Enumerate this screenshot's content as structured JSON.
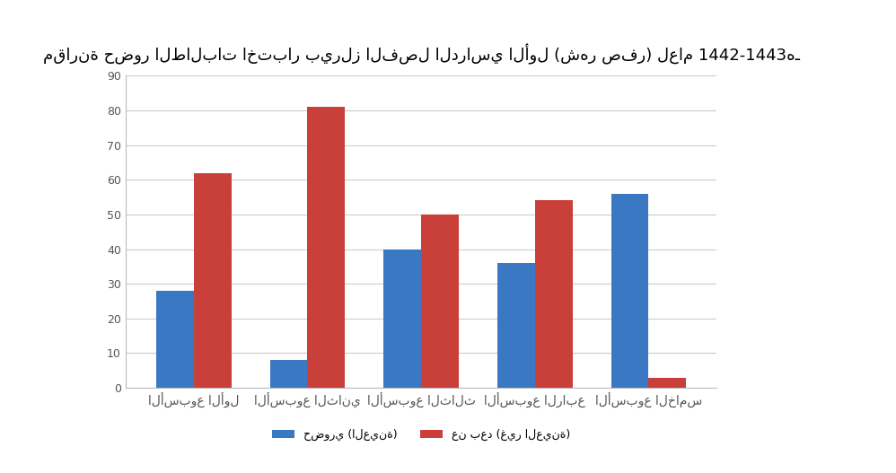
{
  "chart_data": {
    "type": "bar",
    "title": "مقارنة حضور الطالبات اختبار بيرلز الفصل الدراسي الأول (شهر صفر) لعام 1442-1443هـ",
    "categories": [
      "الأسبوع الأول",
      "الأسبوع الثاني",
      "الأسبوع الثالث",
      "الأسبوع الرابع",
      "الأسبوع الخامس"
    ],
    "series": [
      {
        "name": "حضوري (العينة)",
        "color": "#3b78c3",
        "values": [
          28,
          8,
          40,
          36,
          56
        ]
      },
      {
        "name": "عن بعد (غير العينة)",
        "color": "#c93f3a",
        "values": [
          62,
          81,
          50,
          54,
          3
        ]
      }
    ],
    "ylim": [
      0,
      90
    ],
    "yticks": [
      0,
      10,
      20,
      30,
      40,
      50,
      60,
      70,
      80,
      90
    ],
    "grid": true,
    "legend": "bottom"
  }
}
